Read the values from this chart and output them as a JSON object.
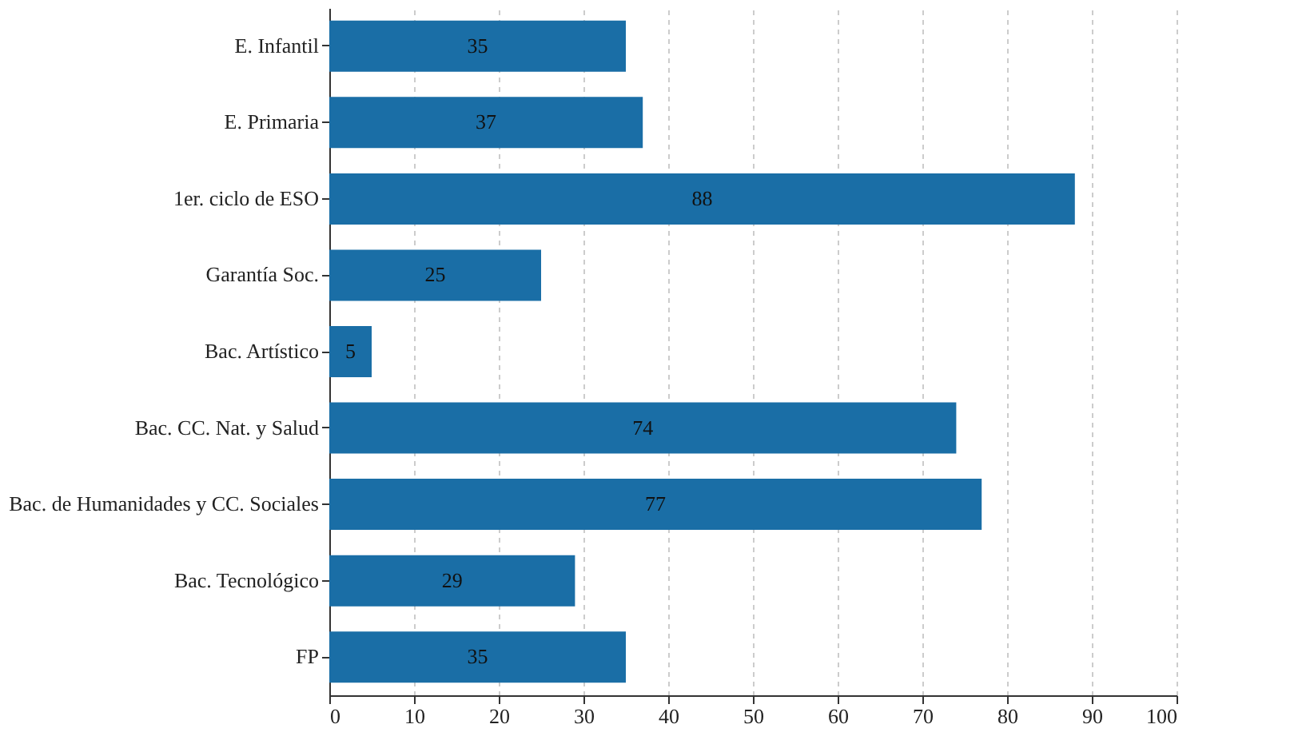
{
  "chart_data": {
    "type": "bar",
    "orientation": "horizontal",
    "categories": [
      "E. Infantil",
      "E. Primaria",
      "1er. ciclo de ESO",
      "Garantía Soc.",
      "Bac. Artístico",
      "Bac. CC. Nat. y  Salud",
      "Bac. de Humanidades y CC. Sociales",
      "Bac. Tecnológico",
      "FP"
    ],
    "values": [
      35,
      37,
      88,
      25,
      5,
      74,
      77,
      29,
      35
    ],
    "color": "#1a6ea6",
    "xlim": [
      0,
      100
    ],
    "xticks": [
      0,
      10,
      20,
      30,
      40,
      50,
      60,
      70,
      80,
      90,
      100
    ],
    "grid": "x",
    "data_labels": true
  }
}
